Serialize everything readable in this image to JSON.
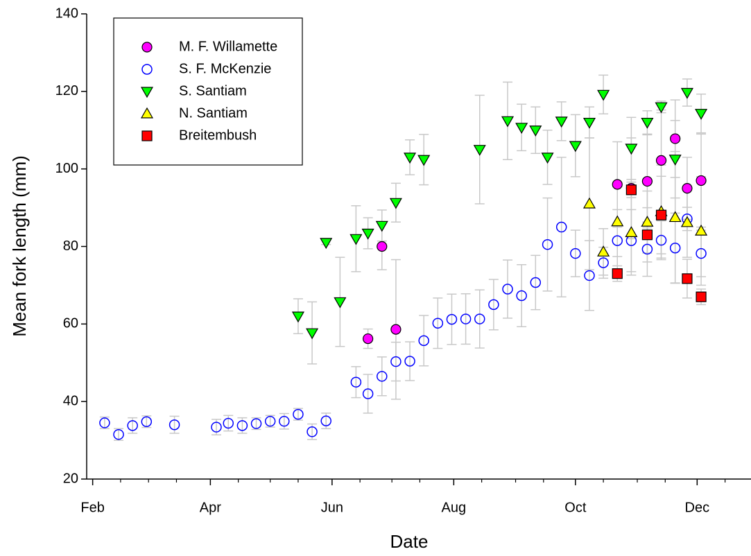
{
  "chart_data": {
    "type": "scatter",
    "xlabel": "Date",
    "ylabel": "Mean fork length (mm)",
    "xlim": [
      29,
      362
    ],
    "ylim": [
      20,
      140
    ],
    "xticks": [
      {
        "value": 32,
        "label": "Feb"
      },
      {
        "value": 91,
        "label": "Apr"
      },
      {
        "value": 152,
        "label": "Jun"
      },
      {
        "value": 213,
        "label": "Aug"
      },
      {
        "value": 274,
        "label": "Oct"
      },
      {
        "value": 335,
        "label": "Dec"
      }
    ],
    "xminorticks": [
      46,
      60,
      74,
      105,
      121,
      135,
      166,
      182,
      196,
      227,
      244,
      258,
      288,
      305,
      319,
      349
    ],
    "yticks": [
      20,
      40,
      60,
      80,
      100,
      120,
      140
    ],
    "legend": "upper left",
    "series": [
      {
        "name": "M. F. Willamette",
        "color": "#ff00ff",
        "marker": "circle",
        "x": [
          170,
          177,
          184,
          295,
          302,
          310,
          317,
          324,
          330,
          337
        ],
        "values": [
          56.2,
          80,
          58.6,
          96,
          95,
          96.8,
          102.2,
          107.8,
          95,
          97
        ],
        "errors": [
          2.5,
          6,
          18,
          11,
          13,
          12,
          13,
          10,
          8,
          12
        ]
      },
      {
        "name": "S. F. McKenzie",
        "color": "#0000ff",
        "marker": "circle-open",
        "x": [
          38,
          45,
          52,
          59,
          73,
          94,
          100,
          107,
          114,
          121,
          128,
          135,
          142,
          149,
          164,
          170,
          177,
          184,
          191,
          198,
          205,
          212,
          219,
          226,
          233,
          240,
          247,
          254,
          260,
          267,
          274,
          281,
          288,
          295,
          302,
          310,
          317,
          324,
          330,
          337
        ],
        "values": [
          34.5,
          31.5,
          33.8,
          34.8,
          34,
          33.4,
          34.4,
          33.8,
          34.3,
          34.9,
          34.9,
          36.7,
          32.2,
          35,
          45,
          42,
          46.5,
          50.3,
          50.4,
          55.7,
          60.2,
          61.2,
          61.3,
          61.3,
          65,
          69,
          67.3,
          70.7,
          80.5,
          85,
          78.2,
          72.5,
          75.8,
          81.5,
          81.5,
          79.3,
          81.6,
          79.6,
          87.1,
          78.2
        ],
        "errors": [
          1.5,
          1.5,
          2,
          1.5,
          2.2,
          2,
          2,
          2,
          1.5,
          1.5,
          2,
          1.5,
          2,
          2,
          4,
          5,
          5,
          5,
          5,
          6.5,
          6.5,
          6.5,
          6.5,
          7.5,
          6.5,
          7.5,
          8,
          7,
          12,
          18,
          6,
          9,
          4,
          8,
          8,
          7,
          5,
          9,
          3,
          6
        ]
      },
      {
        "name": "S. Santiam",
        "color": "#00ff00",
        "marker": "triangle-down",
        "x": [
          135,
          142,
          149,
          156,
          164,
          170,
          177,
          184,
          191,
          198,
          226,
          240,
          247,
          254,
          260,
          267,
          274,
          281,
          288,
          302,
          310,
          317,
          324,
          330,
          337
        ],
        "values": [
          62,
          57.7,
          81,
          65.7,
          82,
          83.4,
          85.4,
          91.3,
          103,
          102.4,
          105,
          112.4,
          110.7,
          110,
          103,
          112.3,
          106,
          112,
          119.2,
          105.3,
          112,
          116,
          102.5,
          119.7,
          114.3
        ],
        "errors": [
          4.5,
          8,
          0.5,
          11.5,
          8.5,
          4,
          4,
          5,
          4.5,
          6.5,
          14,
          10,
          6,
          6,
          7,
          5,
          8,
          4,
          5,
          8,
          3,
          1.5,
          10,
          3.5,
          5
        ]
      },
      {
        "name": "N. Santiam",
        "color": "#ffff00",
        "marker": "triangle-up",
        "x": [
          281,
          288,
          295,
          302,
          310,
          317,
          324,
          330,
          337
        ],
        "values": [
          91,
          78.6,
          86.4,
          83.6,
          86.3,
          89,
          87.5,
          86.2,
          84
        ],
        "errors": [
          17,
          6,
          9,
          11,
          8,
          12,
          17,
          9,
          14
        ]
      },
      {
        "name": "Breitembush",
        "color": "#ff0000",
        "marker": "square",
        "x": [
          295,
          302,
          310,
          317,
          330,
          337
        ],
        "values": [
          73,
          94.6,
          83,
          88.1,
          71.7,
          67
        ],
        "errors": [
          2,
          2,
          7,
          10,
          5,
          2
        ]
      }
    ]
  }
}
